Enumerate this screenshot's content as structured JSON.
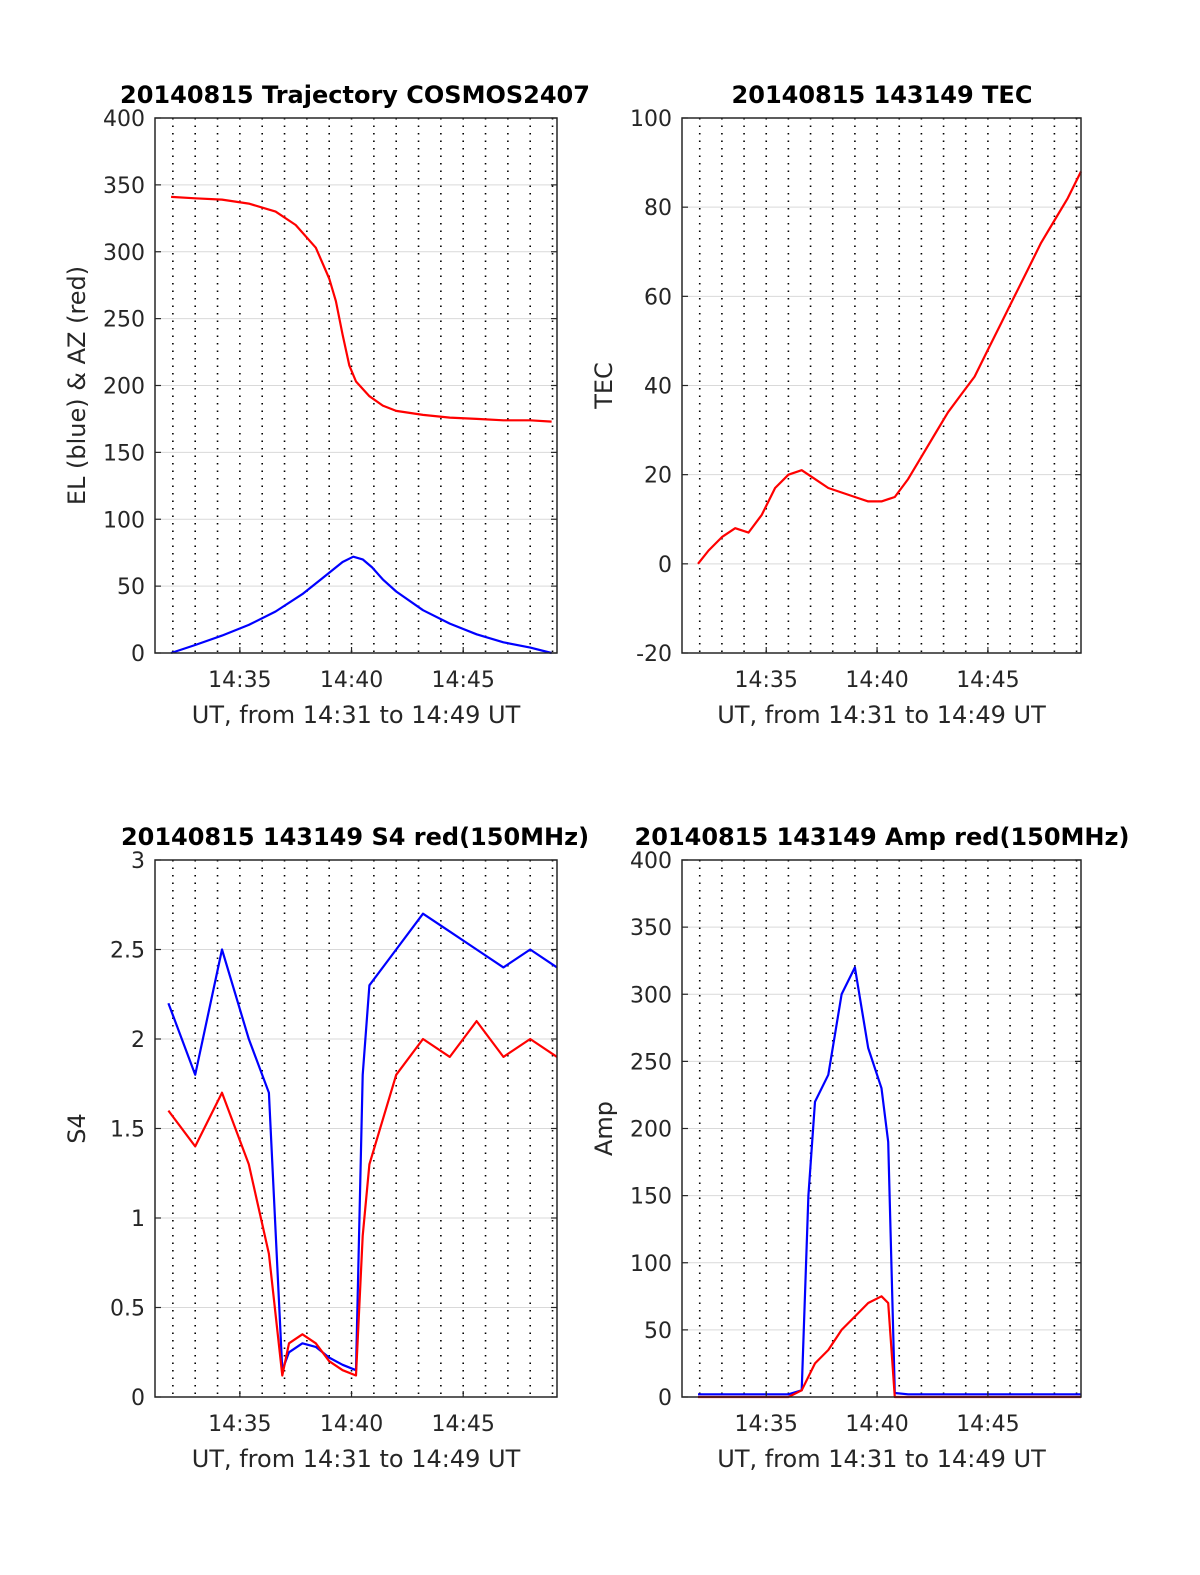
{
  "colors": {
    "el": "#0000ff",
    "az": "#ff0000",
    "grid": "#000000",
    "axis": "#262626"
  },
  "chart_data": [
    {
      "type": "line",
      "title": "20140815 Trajectory COSMOS2407",
      "xlabel": "UT, from 14:31 to 14:49 UT",
      "ylabel": "EL (blue) & AZ (red)",
      "xlim": [
        14.52,
        14.82
      ],
      "ylim": [
        0,
        400
      ],
      "yticks": [
        "0",
        "50",
        "100",
        "150",
        "200",
        "250",
        "300",
        "350",
        "400"
      ],
      "xticks": [
        "14:35",
        "14:40",
        "14:45"
      ],
      "grid": "dotted vertical minutes, solid horizontal",
      "series": [
        {
          "color": "blue",
          "x": [
            14.532,
            14.55,
            14.57,
            14.59,
            14.61,
            14.63,
            14.645,
            14.66,
            14.668,
            14.675,
            14.682,
            14.69,
            14.7,
            14.72,
            14.74,
            14.76,
            14.78,
            14.8,
            14.816
          ],
          "y": [
            0,
            6,
            13,
            21,
            31,
            44,
            56,
            68,
            72,
            70,
            64,
            55,
            46,
            32,
            22,
            14,
            8,
            4,
            0
          ]
        },
        {
          "color": "red",
          "x": [
            14.532,
            14.55,
            14.57,
            14.59,
            14.61,
            14.625,
            14.64,
            14.65,
            14.655,
            14.66,
            14.665,
            14.67,
            14.68,
            14.69,
            14.7,
            14.72,
            14.74,
            14.76,
            14.78,
            14.8,
            14.816
          ],
          "y": [
            341,
            340,
            339,
            336,
            330,
            320,
            303,
            280,
            263,
            238,
            215,
            203,
            192,
            185,
            181,
            178,
            176,
            175,
            174,
            174,
            173
          ]
        }
      ]
    },
    {
      "type": "line",
      "title": "20140815 143149 TEC",
      "xlabel": "UT, from 14:31 to 14:49 UT",
      "ylabel": "TEC",
      "xlim": [
        14.52,
        14.82
      ],
      "ylim": [
        -20,
        100
      ],
      "yticks": [
        "-20",
        "0",
        "20",
        "40",
        "60",
        "80",
        "100"
      ],
      "xticks": [
        "14:35",
        "14:40",
        "14:45"
      ],
      "grid": "dotted vertical minutes, solid horizontal",
      "series": [
        {
          "color": "red",
          "x": [
            14.532,
            14.54,
            14.55,
            14.56,
            14.57,
            14.58,
            14.59,
            14.6,
            14.61,
            14.62,
            14.63,
            14.64,
            14.65,
            14.66,
            14.67,
            14.68,
            14.69,
            14.7,
            14.71,
            14.72,
            14.73,
            14.74,
            14.75,
            14.76,
            14.77,
            14.78,
            14.79,
            14.8,
            14.81,
            14.82
          ],
          "y": [
            0,
            3,
            6,
            8,
            7,
            11,
            17,
            20,
            21,
            19,
            17,
            16,
            15,
            14,
            14,
            15,
            19,
            24,
            29,
            34,
            38,
            42,
            48,
            54,
            60,
            66,
            72,
            77,
            82,
            88
          ]
        }
      ]
    },
    {
      "type": "line",
      "title": "20140815 143149 S4 red(150MHz)",
      "xlabel": "UT, from 14:31 to 14:49 UT",
      "ylabel": "S4",
      "xlim": [
        14.52,
        14.82
      ],
      "ylim": [
        0,
        3
      ],
      "yticks": [
        "0",
        "0.5",
        "1",
        "1.5",
        "2",
        "2.5",
        "3"
      ],
      "xticks": [
        "14:35",
        "14:40",
        "14:45"
      ],
      "grid": "dotted vertical minutes, solid horizontal",
      "series": [
        {
          "color": "blue",
          "x": [
            14.53,
            14.55,
            14.57,
            14.59,
            14.605,
            14.615,
            14.62,
            14.63,
            14.64,
            14.65,
            14.66,
            14.67,
            14.675,
            14.68,
            14.7,
            14.72,
            14.74,
            14.76,
            14.78,
            14.8,
            14.82
          ],
          "y": [
            2.2,
            1.8,
            2.5,
            2.0,
            1.7,
            0.15,
            0.25,
            0.3,
            0.28,
            0.22,
            0.18,
            0.15,
            1.8,
            2.3,
            2.5,
            2.7,
            2.6,
            2.5,
            2.4,
            2.5,
            2.4
          ]
        },
        {
          "color": "red",
          "x": [
            14.53,
            14.55,
            14.57,
            14.59,
            14.605,
            14.615,
            14.62,
            14.63,
            14.64,
            14.65,
            14.66,
            14.67,
            14.675,
            14.68,
            14.7,
            14.72,
            14.74,
            14.76,
            14.78,
            14.8,
            14.82
          ],
          "y": [
            1.6,
            1.4,
            1.7,
            1.3,
            0.8,
            0.12,
            0.3,
            0.35,
            0.3,
            0.2,
            0.15,
            0.12,
            0.9,
            1.3,
            1.8,
            2.0,
            1.9,
            2.1,
            1.9,
            2.0,
            1.9
          ]
        }
      ]
    },
    {
      "type": "line",
      "title": "20140815 143149 Amp red(150MHz)",
      "xlabel": "UT, from 14:31 to 14:49 UT",
      "ylabel": "Amp",
      "xlim": [
        14.52,
        14.82
      ],
      "ylim": [
        0,
        400
      ],
      "yticks": [
        "0",
        "50",
        "100",
        "150",
        "200",
        "250",
        "300",
        "350",
        "400"
      ],
      "xticks": [
        "14:35",
        "14:40",
        "14:45"
      ],
      "grid": "dotted vertical minutes, solid horizontal",
      "series": [
        {
          "color": "blue",
          "x": [
            14.532,
            14.6,
            14.61,
            14.615,
            14.62,
            14.63,
            14.64,
            14.65,
            14.66,
            14.67,
            14.675,
            14.68,
            14.69,
            14.82
          ],
          "y": [
            2,
            2,
            5,
            150,
            220,
            240,
            300,
            320,
            260,
            230,
            190,
            3,
            2,
            2
          ]
        },
        {
          "color": "red",
          "x": [
            14.532,
            14.6,
            14.61,
            14.62,
            14.63,
            14.64,
            14.65,
            14.66,
            14.67,
            14.675,
            14.68,
            14.82
          ],
          "y": [
            0,
            0,
            5,
            25,
            35,
            50,
            60,
            70,
            75,
            70,
            0,
            0
          ]
        }
      ]
    }
  ]
}
